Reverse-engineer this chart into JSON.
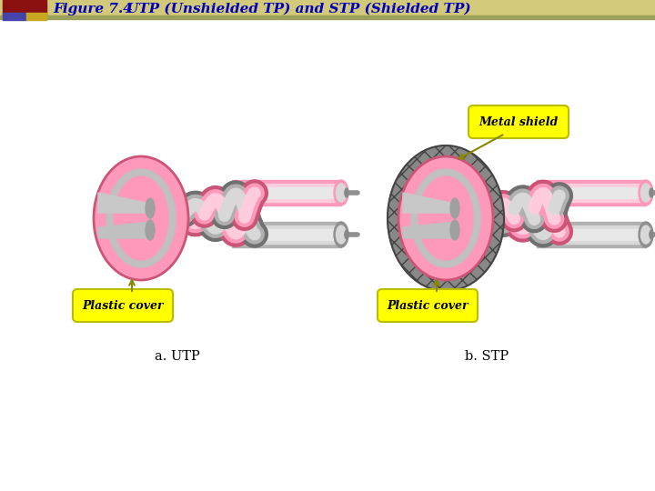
{
  "title_bold": "Figure 7.4",
  "title_rest": "    UTP (Unshielded TP) and STP (Shielded TP)",
  "label_utp": "a. UTP",
  "label_stp": "b. STP",
  "label_plastic": "Plastic cover",
  "label_metal": "Metal shield",
  "bg_color": "#ffffff",
  "pink_color": "#FF99BB",
  "pink_mid": "#EE88AA",
  "pink_dark": "#CC5577",
  "pink_light": "#FFCCDD",
  "gray_color": "#B0B0B0",
  "gray_mid": "#909090",
  "gray_dark": "#707070",
  "gray_light": "#D8D8D8",
  "yellow_fill": "#FFFF00",
  "yellow_border": "#BBBB00",
  "blue_title": "#0000BB",
  "header_tan": "#D2C97A",
  "header_olive": "#9BA05A"
}
